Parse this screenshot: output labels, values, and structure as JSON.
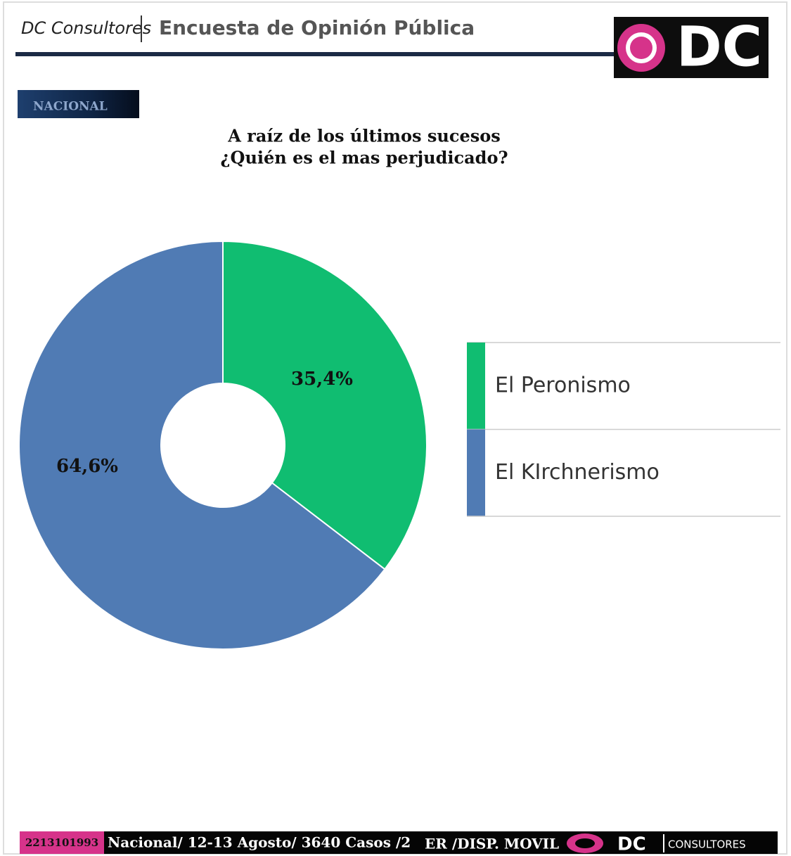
{
  "header": {
    "brand": "DC Consultores",
    "title": "Encuesta de Opinión Pública",
    "logo": "DC",
    "section": "NACIONAL"
  },
  "chart_data": {
    "type": "pie",
    "title": "A raíz de los últimos sucesos",
    "subtitle": "¿Quién es el mas perjudicado?",
    "categories": [
      "El Peronismo",
      "El KIrchnerismo"
    ],
    "values": [
      35.4,
      64.6
    ],
    "value_labels": [
      "35,4%",
      "64,6%"
    ],
    "colors": [
      "#10bd71",
      "#507bb4"
    ],
    "legend": "right"
  },
  "footer": {
    "phone": "2213101993",
    "info": "Nacional/ 12-13 Agosto/ 3640 Casos /2",
    "info2": "ER /DISP. MOVIL",
    "logo": "DC",
    "logo_sub": "CONSULTORES"
  }
}
